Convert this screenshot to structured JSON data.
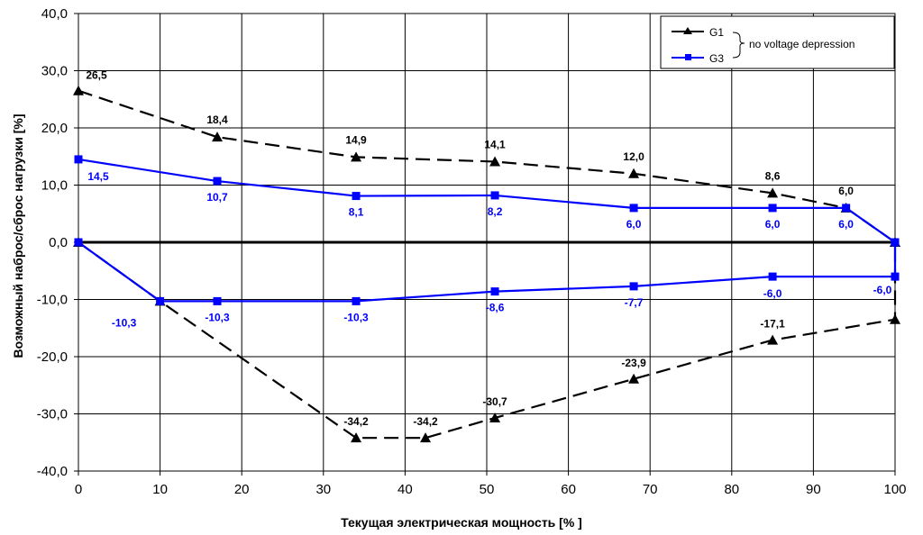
{
  "chart_data": {
    "type": "line",
    "xlabel": "Текущая электрическая мощность [% ]",
    "ylabel": "Возможный наброс/сброс нагрузки [%]",
    "xlim": [
      0,
      100
    ],
    "ylim": [
      -40,
      40
    ],
    "x_ticks": [
      "0",
      "10",
      "20",
      "30",
      "40",
      "50",
      "60",
      "70",
      "80",
      "90",
      "100"
    ],
    "y_ticks": [
      "40,0",
      "30,0",
      "20,0",
      "10,0",
      "0,0",
      "-10,0",
      "-20,0",
      "-30,0",
      "-40,0"
    ],
    "grid": true,
    "legend_position": "top-right",
    "legend_note": "no voltage depression",
    "colors": {
      "G1": "#000000",
      "G3": "#0000ff",
      "zero_line": "#000000",
      "grid": "#000000"
    },
    "series": [
      {
        "name": "G1",
        "part": "upper",
        "style": "dashed",
        "marker": "triangle",
        "x": [
          0,
          17,
          34,
          51,
          68,
          85,
          94,
          100
        ],
        "y": [
          26.5,
          18.4,
          14.9,
          14.1,
          12.0,
          8.6,
          6.0,
          0.0
        ],
        "labels": [
          "26,5",
          "18,4",
          "14,9",
          "14,1",
          "12,0",
          "8,6",
          "6,0",
          ""
        ]
      },
      {
        "name": "G1",
        "part": "lower",
        "style": "dashed",
        "marker": "triangle",
        "x": [
          0,
          10,
          34,
          42.5,
          51,
          68,
          85,
          100,
          100
        ],
        "y": [
          0.0,
          -10.3,
          -34.2,
          -34.2,
          -30.7,
          -23.9,
          -17.1,
          -13.5,
          0.0
        ],
        "labels": [
          "",
          "",
          "-34,2",
          "-34,2",
          "-30,7",
          "-23,9",
          "-17,1",
          "",
          ""
        ]
      },
      {
        "name": "G3",
        "part": "upper",
        "style": "solid",
        "marker": "square",
        "x": [
          0,
          17,
          34,
          51,
          68,
          85,
          94,
          100
        ],
        "y": [
          14.5,
          10.7,
          8.1,
          8.2,
          6.0,
          6.0,
          6.0,
          0.0
        ],
        "labels": [
          "14,5",
          "10,7",
          "8,1",
          "8,2",
          "6,0",
          "6,0",
          "6,0",
          ""
        ]
      },
      {
        "name": "G3",
        "part": "lower",
        "style": "solid",
        "marker": "square",
        "x": [
          0,
          10,
          17,
          34,
          51,
          68,
          85,
          100,
          100
        ],
        "y": [
          0.0,
          -10.3,
          -10.3,
          -10.3,
          -8.6,
          -7.7,
          -6.0,
          -6.0,
          0.0
        ],
        "labels": [
          "",
          "-10,3",
          "-10,3",
          "-10,3",
          "-8,6",
          "-7,7",
          "-6,0",
          "-6,0",
          ""
        ]
      }
    ]
  }
}
